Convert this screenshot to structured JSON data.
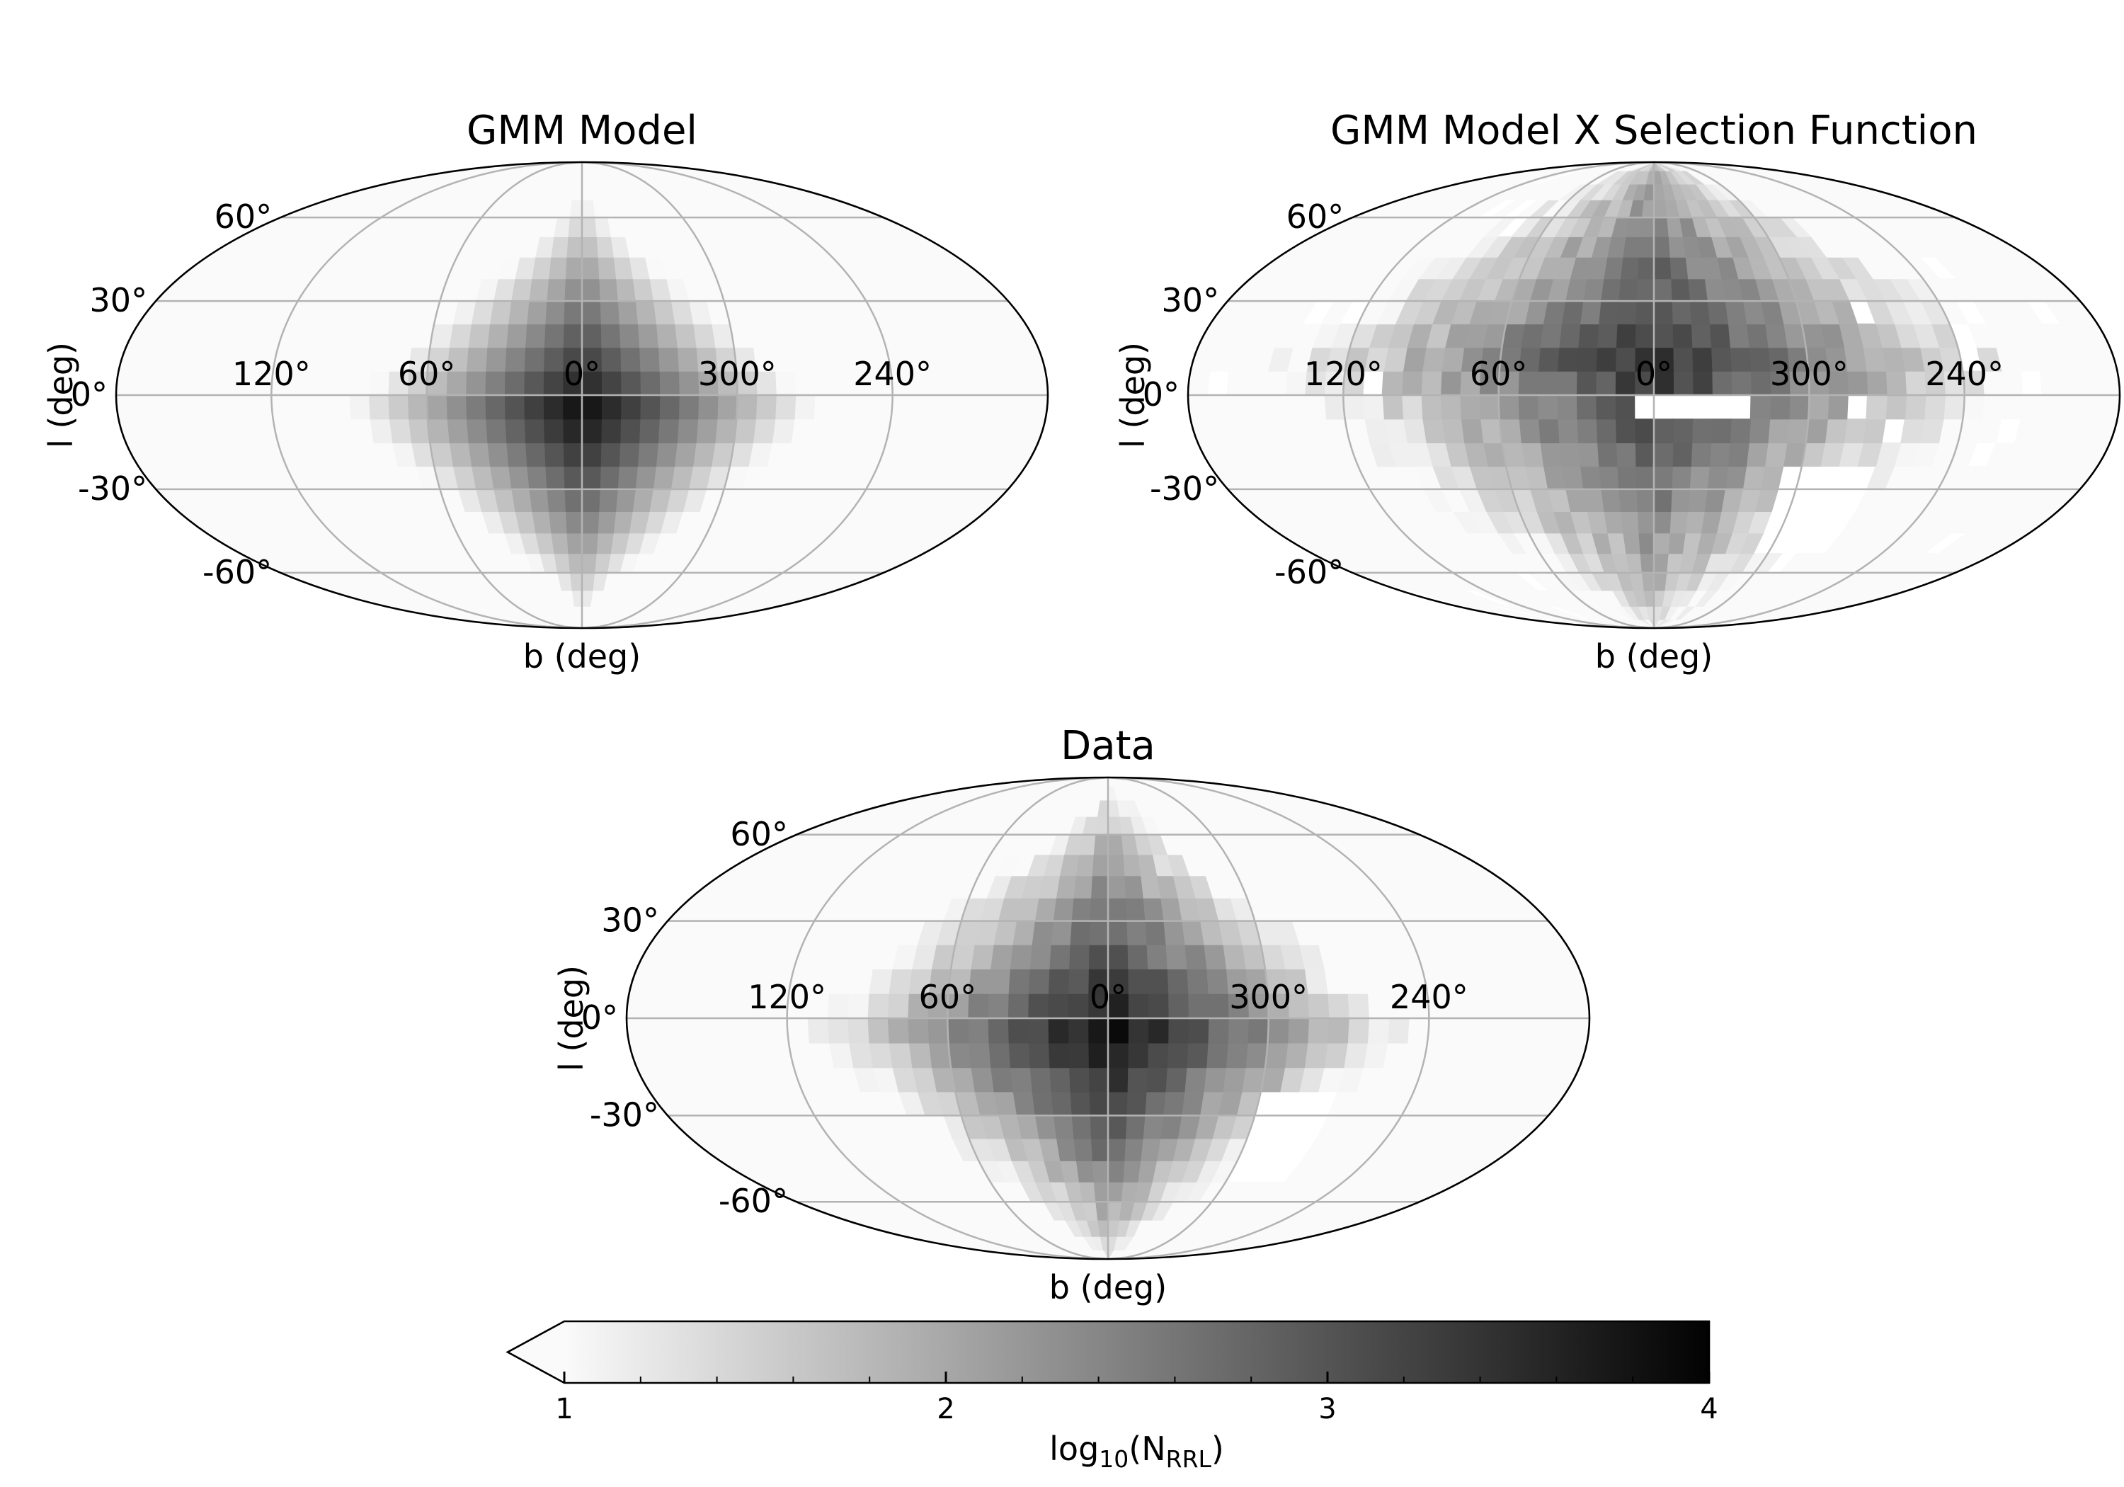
{
  "chart_data": [
    {
      "type": "heatmap",
      "projection": "mollweide",
      "title": "GMM Model",
      "xlabel": "b (deg)",
      "ylabel": "l (deg)",
      "longitude_tick_labels": [
        "120°",
        "60°",
        "0°",
        "300°",
        "240°"
      ],
      "latitude_tick_labels": [
        "60°",
        "30°",
        "0°",
        "-30°",
        "-60°"
      ],
      "grid": true,
      "peak_log10_N": 3.9,
      "peak_at": [
        0,
        -5
      ],
      "empty_regions": []
    },
    {
      "type": "heatmap",
      "projection": "mollweide",
      "title": "GMM Model X Selection Function",
      "xlabel": "b (deg)",
      "ylabel": "l (deg)",
      "longitude_tick_labels": [
        "120°",
        "60°",
        "0°",
        "300°",
        "240°"
      ],
      "latitude_tick_labels": [
        "60°",
        "30°",
        "0°",
        "-30°",
        "-60°"
      ],
      "grid": true,
      "peak_log10_N": 3.5,
      "peak_at": [
        0,
        10
      ],
      "empty_regions": [
        {
          "lon": [
            -35,
            8
          ],
          "lat": [
            -8,
            2
          ]
        },
        {
          "lon": [
            -22,
            8
          ],
          "lat": [
            -10,
            -5
          ]
        },
        {
          "lon": [
            -90,
            -55
          ],
          "lat": [
            -55,
            -20
          ]
        }
      ]
    },
    {
      "type": "heatmap",
      "projection": "mollweide",
      "title": "Data",
      "xlabel": "b (deg)",
      "ylabel": "l (deg)",
      "longitude_tick_labels": [
        "120°",
        "60°",
        "0°",
        "300°",
        "240°"
      ],
      "latitude_tick_labels": [
        "60°",
        "30°",
        "0°",
        "-30°",
        "-60°"
      ],
      "grid": true,
      "peak_log10_N": 3.9,
      "peak_at": [
        0,
        -5
      ],
      "empty_regions": [
        {
          "lon": [
            -90,
            -60
          ],
          "lat": [
            -55,
            -25
          ]
        }
      ]
    }
  ],
  "colorbar": {
    "label_main": "log",
    "label_sub": "10",
    "label_paren_open": "(N",
    "label_subscript": "RRL",
    "label_paren_close": ")",
    "ticks": [
      1,
      2,
      3,
      4
    ],
    "tick_labels": [
      "1",
      "2",
      "3",
      "4"
    ],
    "range": [
      1,
      4
    ],
    "extend": "min",
    "colormap": "Greys",
    "color_low": "#ffffff",
    "color_high": "#000000"
  }
}
